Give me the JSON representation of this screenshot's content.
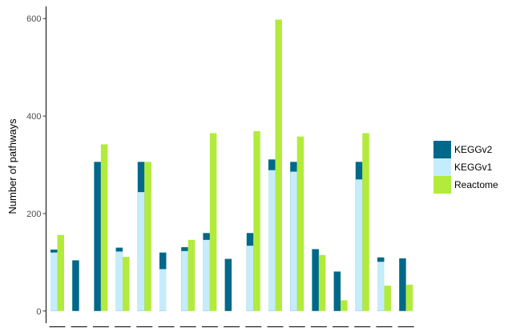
{
  "chart_data": {
    "type": "bar",
    "stacked_pairs": true,
    "title": "",
    "xlabel": "",
    "ylabel": "Number of pathways",
    "ylim": [
      -25,
      625
    ],
    "yticks": [
      "0",
      "200",
      "400",
      "600"
    ],
    "ytick_values": [
      0,
      200,
      400,
      600
    ],
    "categories": [
      "",
      "",
      "",
      "",
      "",
      "",
      "",
      "",
      "",
      "",
      "",
      "",
      "",
      "",
      "",
      "",
      ""
    ],
    "series": [
      {
        "name": "KEGGv2",
        "color": "#006889",
        "values": [
          126,
          104,
          306,
          130,
          306,
          120,
          131,
          160,
          107,
          160,
          311,
          306,
          127,
          81,
          306,
          110,
          108
        ]
      },
      {
        "name": "KEGGv1",
        "color": "#c4ecfa",
        "values": [
          120,
          0,
          0,
          122,
          244,
          86,
          123,
          146,
          0,
          134,
          289,
          286,
          0,
          0,
          270,
          101,
          0
        ]
      },
      {
        "name": "Reactome",
        "color": "#b2eb3c",
        "values": [
          156,
          0,
          342,
          111,
          306,
          0,
          146,
          365,
          0,
          369,
          598,
          358,
          115,
          22,
          365,
          52,
          54
        ]
      }
    ],
    "grid": false,
    "legend_position": "right"
  }
}
